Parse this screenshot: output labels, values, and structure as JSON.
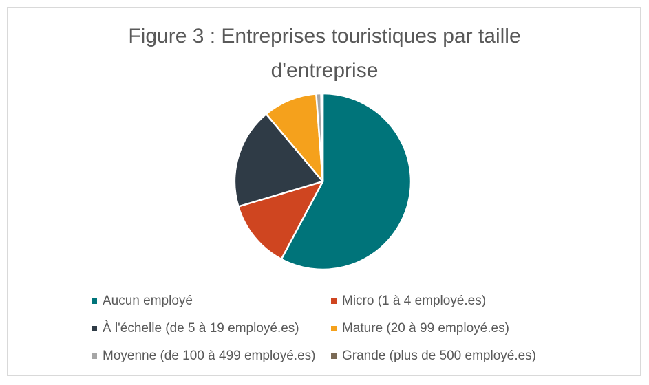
{
  "chart_data": {
    "type": "pie",
    "title": "Figure 3 : Entreprises touristiques par taille d'entreprise",
    "title_lines": [
      "Figure 3 : Entreprises touristiques par taille",
      "d'entreprise"
    ],
    "legend_position": "bottom",
    "slices": [
      {
        "name": "Aucun employé",
        "value": 57.8,
        "color": "#00747a"
      },
      {
        "name": "Micro (1 à 4 employé.es)",
        "value": 12.6,
        "color": "#cf4520"
      },
      {
        "name": "À l'échelle (de 5 à 19 employé.es)",
        "value": 18.5,
        "color": "#2f3b46"
      },
      {
        "name": "Mature (20 à 99 employé.es)",
        "value": 9.9,
        "color": "#f5a11c"
      },
      {
        "name": "Moyenne (de 100 à 499 employé.es)",
        "value": 0.9,
        "color": "#a6a6a6"
      },
      {
        "name": "Grande (plus de 500 employé.es)",
        "value": 0.3,
        "color": "#7a6a55"
      }
    ]
  }
}
